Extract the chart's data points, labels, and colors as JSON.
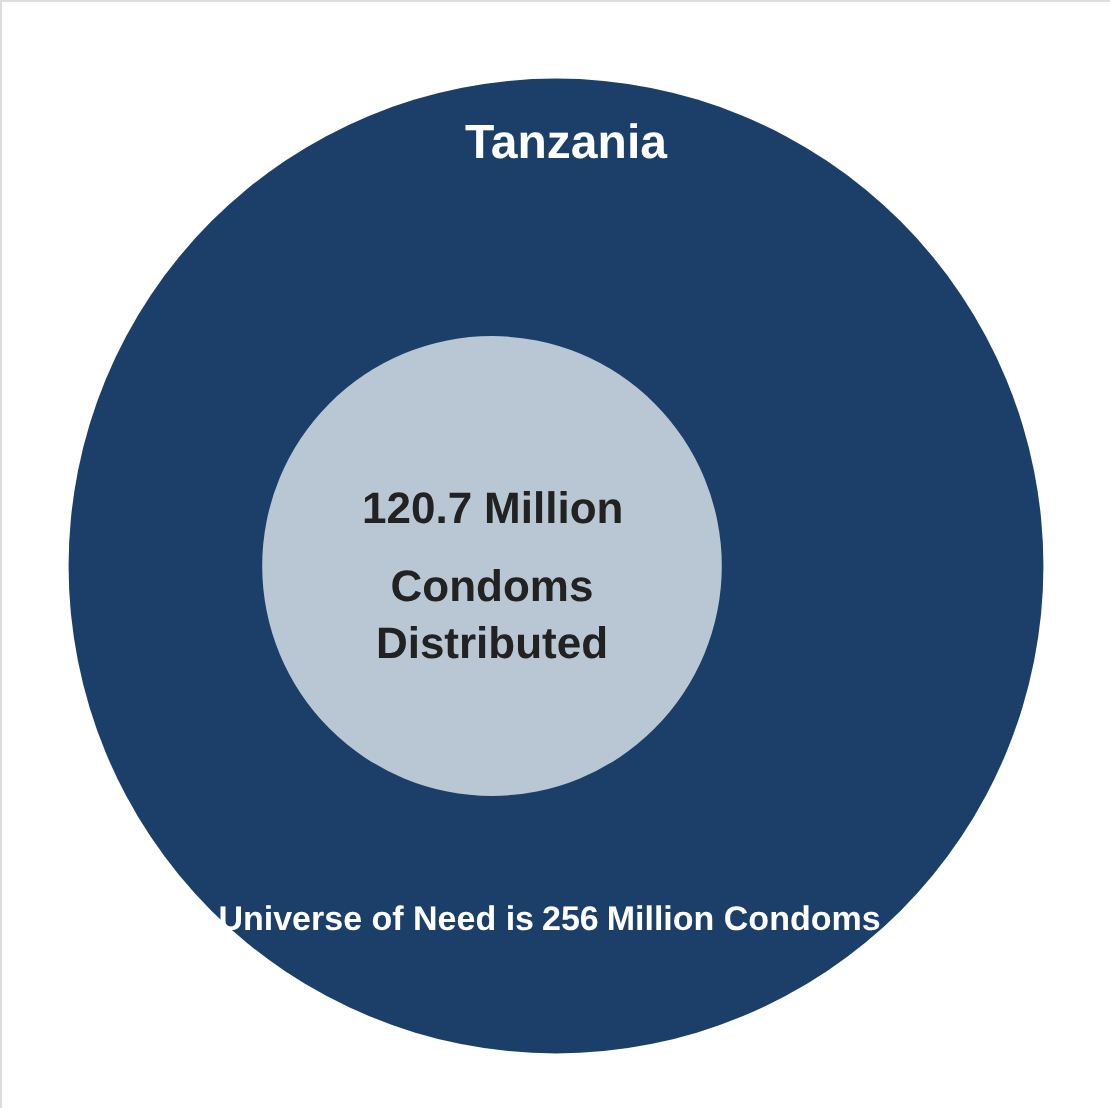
{
  "chart_data": {
    "type": "other",
    "title": "Tanzania",
    "categories": [
      "Universe of Need is",
      "Condoms\nDistributed"
    ],
    "values": [
      256,
      120.7
    ],
    "data_labels": true,
    "annotations": [
      "Million Condoms",
      "Million"
    ],
    "colors": [
      "#1c3f6a",
      "#b9c6d3"
    ]
  }
}
